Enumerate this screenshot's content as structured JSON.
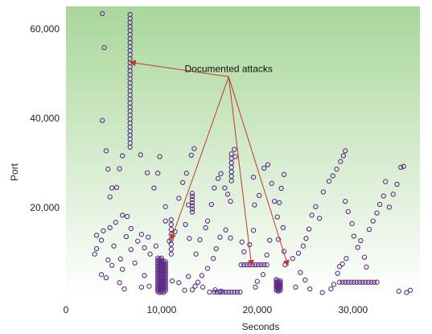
{
  "chart_data": {
    "type": "scatter",
    "title": "",
    "xlabel": "Seconds",
    "ylabel": "Port",
    "xlim": [
      0,
      37000
    ],
    "ylim": [
      0,
      65000
    ],
    "x_ticks": [
      0,
      10000,
      20000,
      30000
    ],
    "x_tick_labels": [
      "0",
      "10,000",
      "20,000",
      "30,000"
    ],
    "y_ticks": [
      20000,
      40000,
      60000
    ],
    "y_tick_labels": [
      "20,000",
      "40,000",
      "60,000"
    ],
    "grid": false,
    "legend": "none",
    "background": "vertical gradient, pale green at top to white at bottom",
    "marker": "open circle",
    "colors": {
      "marker": "#5b2a86",
      "annotation_arrow": "#c0392b",
      "gradient_top": "#a9d79a",
      "gradient_bottom": "#ffffff"
    },
    "annotations": [
      {
        "text": "Documented attacks",
        "x": 17000,
        "y": 50000,
        "targets": [
          [
            6700,
            52500
          ],
          [
            11000,
            12800
          ],
          [
            19400,
            7000
          ],
          [
            23200,
            7000
          ]
        ]
      }
    ],
    "points": [
      [
        3800,
        63400
      ],
      [
        4000,
        55800
      ],
      [
        3800,
        39500
      ],
      [
        3200,
        10800
      ],
      [
        3700,
        12700
      ],
      [
        3900,
        14800
      ],
      [
        4600,
        22400
      ],
      [
        4800,
        24400
      ],
      [
        4400,
        28600
      ],
      [
        4200,
        32700
      ],
      [
        4600,
        15500
      ],
      [
        5200,
        16700
      ],
      [
        3700,
        5000
      ],
      [
        4200,
        4300
      ],
      [
        4800,
        7100
      ],
      [
        5700,
        8500
      ],
      [
        5900,
        6200
      ],
      [
        5300,
        24500
      ],
      [
        5600,
        28700
      ],
      [
        5900,
        31600
      ],
      [
        5900,
        18300
      ],
      [
        6400,
        18000
      ],
      [
        6300,
        13500
      ],
      [
        6800,
        15300
      ],
      [
        6800,
        10600
      ],
      [
        7500,
        12500
      ],
      [
        7900,
        14000
      ],
      [
        8200,
        11000
      ],
      [
        8600,
        13400
      ],
      [
        8800,
        9600
      ],
      [
        7800,
        31800
      ],
      [
        8500,
        27800
      ],
      [
        9200,
        24400
      ],
      [
        9600,
        27700
      ],
      [
        9800,
        31400
      ],
      [
        10400,
        20200
      ],
      [
        9400,
        11400
      ],
      [
        8700,
        2400
      ],
      [
        9600,
        1700
      ],
      [
        10400,
        17000
      ],
      [
        10800,
        12500
      ],
      [
        11400,
        14600
      ],
      [
        11800,
        22100
      ],
      [
        12200,
        25600
      ],
      [
        12600,
        27700
      ],
      [
        12800,
        20600
      ],
      [
        13100,
        31700
      ],
      [
        13400,
        33200
      ],
      [
        12500,
        16200
      ],
      [
        12900,
        13100
      ],
      [
        13600,
        9600
      ],
      [
        14000,
        12800
      ],
      [
        14600,
        15500
      ],
      [
        14800,
        17000
      ],
      [
        15200,
        20700
      ],
      [
        15500,
        24400
      ],
      [
        15900,
        26500
      ],
      [
        16200,
        27600
      ],
      [
        16600,
        24400
      ],
      [
        16900,
        23000
      ],
      [
        17200,
        21400
      ],
      [
        17600,
        33000
      ],
      [
        17700,
        31400
      ],
      [
        17200,
        13200
      ],
      [
        16700,
        15000
      ],
      [
        16100,
        13400
      ],
      [
        15700,
        10800
      ],
      [
        15400,
        8600
      ],
      [
        14800,
        6400
      ],
      [
        14200,
        4800
      ],
      [
        13800,
        3300
      ],
      [
        13500,
        2400
      ],
      [
        13200,
        1600
      ],
      [
        12400,
        1500
      ],
      [
        11800,
        3200
      ],
      [
        11100,
        3600
      ],
      [
        12800,
        4600
      ],
      [
        18400,
        12300
      ],
      [
        18600,
        10100
      ],
      [
        19200,
        11700
      ],
      [
        19600,
        14900
      ],
      [
        19700,
        20600
      ],
      [
        19600,
        26800
      ],
      [
        20200,
        22700
      ],
      [
        20700,
        28800
      ],
      [
        21100,
        29600
      ],
      [
        21500,
        25400
      ],
      [
        21800,
        21400
      ],
      [
        22100,
        17900
      ],
      [
        22300,
        21100
      ],
      [
        22500,
        24300
      ],
      [
        22800,
        27400
      ],
      [
        22700,
        15500
      ],
      [
        22200,
        12900
      ],
      [
        22800,
        10200
      ],
      [
        22900,
        7200
      ],
      [
        23700,
        8600
      ],
      [
        24300,
        9800
      ],
      [
        24800,
        11400
      ],
      [
        25100,
        13100
      ],
      [
        25400,
        15200
      ],
      [
        25700,
        18300
      ],
      [
        26100,
        20200
      ],
      [
        26500,
        17600
      ],
      [
        26900,
        23500
      ],
      [
        27500,
        25900
      ],
      [
        27900,
        27100
      ],
      [
        28300,
        28600
      ],
      [
        28700,
        30300
      ],
      [
        29000,
        31600
      ],
      [
        29200,
        32700
      ],
      [
        29200,
        21400
      ],
      [
        29500,
        19100
      ],
      [
        29900,
        16400
      ],
      [
        30100,
        13600
      ],
      [
        30500,
        11100
      ],
      [
        30800,
        12600
      ],
      [
        31200,
        8900
      ],
      [
        31400,
        6700
      ],
      [
        31700,
        15100
      ],
      [
        32100,
        17000
      ],
      [
        32500,
        18800
      ],
      [
        32800,
        20700
      ],
      [
        33200,
        22600
      ],
      [
        33400,
        25800
      ],
      [
        33800,
        20100
      ],
      [
        34200,
        23000
      ],
      [
        34600,
        25200
      ],
      [
        35000,
        29000
      ],
      [
        35300,
        29200
      ],
      [
        34800,
        1300
      ],
      [
        35600,
        1000
      ],
      [
        36000,
        1500
      ],
      [
        28000,
        2800
      ],
      [
        28400,
        5300
      ],
      [
        28600,
        6800
      ],
      [
        28900,
        7400
      ],
      [
        29300,
        8600
      ],
      [
        27700,
        1800
      ],
      [
        26800,
        1000
      ],
      [
        25500,
        1800
      ],
      [
        25000,
        3800
      ],
      [
        24500,
        5500
      ],
      [
        24000,
        2200
      ],
      [
        21300,
        12700
      ],
      [
        21000,
        9400
      ],
      [
        20600,
        5000
      ],
      [
        20000,
        3500
      ],
      [
        19800,
        2200
      ],
      [
        16200,
        1300
      ],
      [
        15600,
        1600
      ],
      [
        15000,
        1100
      ],
      [
        14300,
        2200
      ],
      [
        7900,
        2200
      ],
      [
        8200,
        4800
      ],
      [
        7200,
        7600
      ],
      [
        5600,
        3200
      ],
      [
        6100,
        1800
      ],
      [
        3000,
        9600
      ],
      [
        3200,
        13800
      ],
      [
        5000,
        11400
      ],
      [
        4400,
        8300
      ]
    ],
    "vertical_clusters": [
      {
        "x": 6700,
        "y_from": 33500,
        "y_to": 63800,
        "step": 900
      },
      {
        "x": 9600,
        "y_from": 1200,
        "y_to": 8800,
        "step": 500
      },
      {
        "x": 9800,
        "y_from": 1000,
        "y_to": 8600,
        "step": 500
      },
      {
        "x": 10000,
        "y_from": 1200,
        "y_to": 8800,
        "step": 500
      },
      {
        "x": 10200,
        "y_from": 1000,
        "y_to": 8400,
        "step": 500
      },
      {
        "x": 10400,
        "y_from": 1400,
        "y_to": 8000,
        "step": 500
      },
      {
        "x": 11000,
        "y_from": 9600,
        "y_to": 17600,
        "step": 1100
      },
      {
        "x": 13200,
        "y_from": 19000,
        "y_to": 23800,
        "step": 700
      },
      {
        "x": 17300,
        "y_from": 26000,
        "y_to": 32000,
        "step": 1000
      },
      {
        "x": 22000,
        "y_from": 1500,
        "y_to": 4000,
        "step": 350
      },
      {
        "x": 22200,
        "y_from": 1300,
        "y_to": 3700,
        "step": 350
      },
      {
        "x": 22400,
        "y_from": 1500,
        "y_to": 3900,
        "step": 350
      }
    ],
    "horizontal_clusters": [
      {
        "y": 7200,
        "x_from": 18300,
        "x_to": 21000,
        "step": 300
      },
      {
        "y": 3300,
        "x_from": 28600,
        "x_to": 32600,
        "step": 300
      },
      {
        "y": 1100,
        "x_from": 15500,
        "x_to": 18200,
        "step": 300
      }
    ]
  }
}
